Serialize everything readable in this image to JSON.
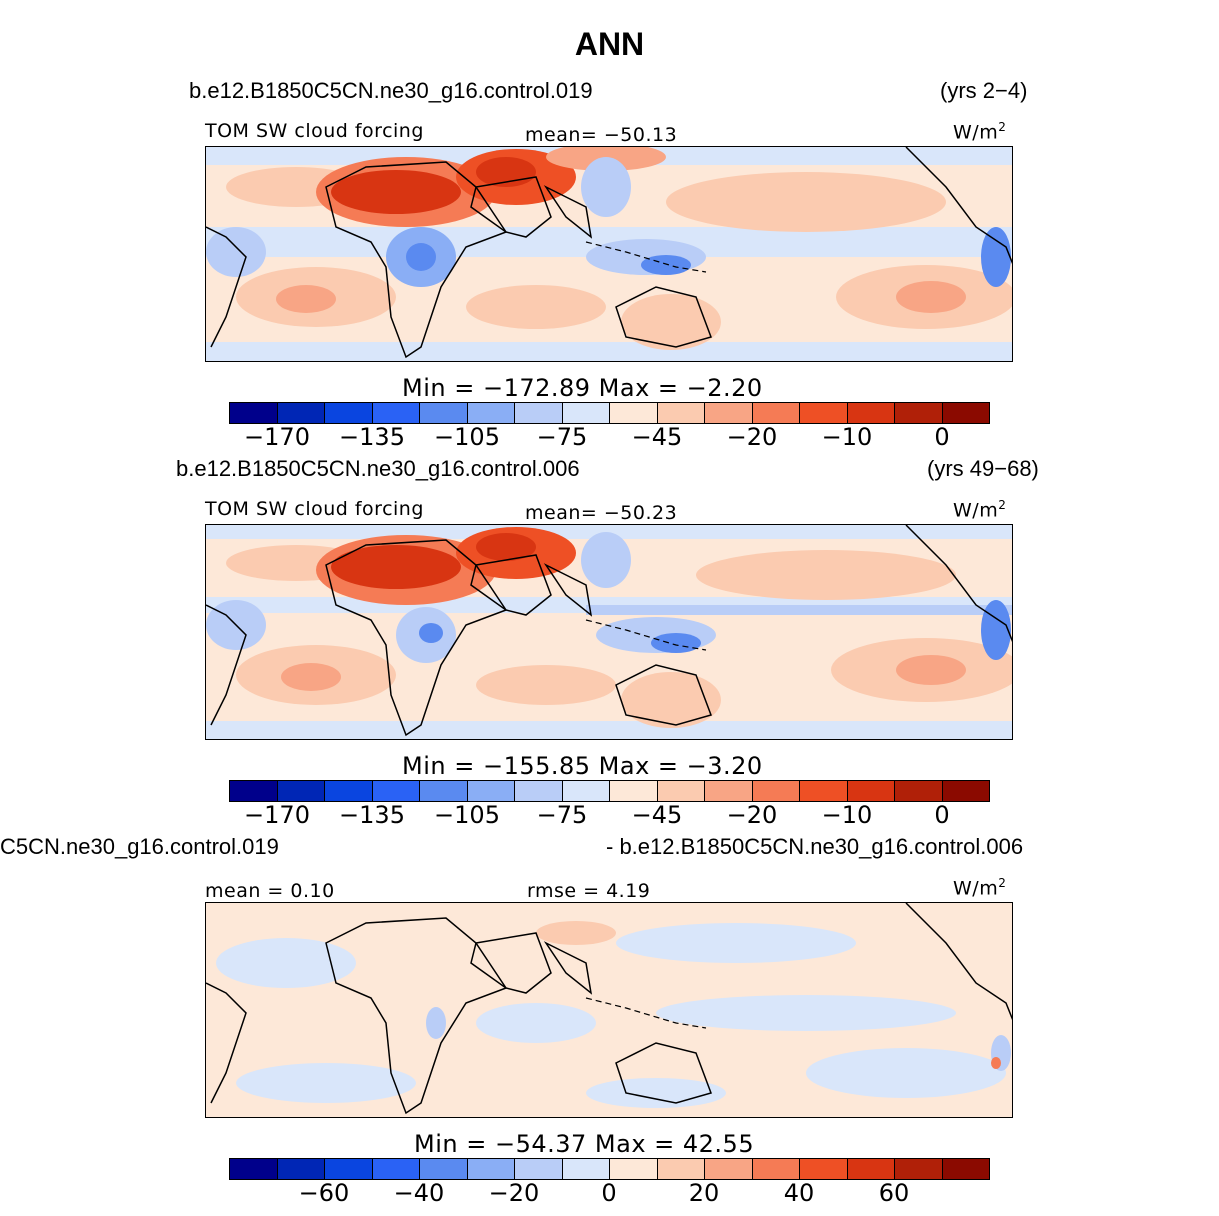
{
  "title": "ANN",
  "colors": {
    "colorbar": [
      "#00008b",
      "#0026b5",
      "#0a45e0",
      "#2a62f5",
      "#5a8af0",
      "#8aaef5",
      "#b9cdf7",
      "#d9e6fa",
      "#fde8d8",
      "#fbcbb0",
      "#f8a585",
      "#f57b55",
      "#ee5025",
      "#d83512",
      "#b02008",
      "#8b0a00"
    ],
    "land_outline": "#000000"
  },
  "panels": [
    {
      "case_name": "b.e12.B1850C5CN.ne30_g16.control.019",
      "years": "(yrs 2-4)",
      "variable": "TOM SW cloud forcing",
      "mean_label": "mean= -50.13",
      "units": "W/m",
      "units_sup": "2",
      "minmax": "Min = -172.89 Max =  -2.20",
      "ticks": [
        "-170",
        "-135",
        "-105",
        "-75",
        "-45",
        "-20",
        "-10",
        "0"
      ]
    },
    {
      "case_name": "b.e12.B1850C5CN.ne30_g16.control.006",
      "years": "(yrs 49-68)",
      "variable": "TOM SW cloud forcing",
      "mean_label": "mean= -50.23",
      "units": "W/m",
      "units_sup": "2",
      "minmax": "Min = -155.85 Max =  -3.20",
      "ticks": [
        "-170",
        "-135",
        "-105",
        "-75",
        "-45",
        "-20",
        "-10",
        "0"
      ]
    },
    {
      "case_name": "C5CN.ne30_g16.control.019",
      "years": "- b.e12.B1850C5CN.ne30_g16.control.006",
      "mean_label": "mean =   0.10",
      "rmse_label": "rmse =   4.19",
      "units": "W/m",
      "units_sup": "2",
      "minmax": "Min = -54.37 Max =  42.55",
      "ticks": [
        "-60",
        "-40",
        "-20",
        "0",
        "20",
        "40",
        "60"
      ]
    }
  ]
}
